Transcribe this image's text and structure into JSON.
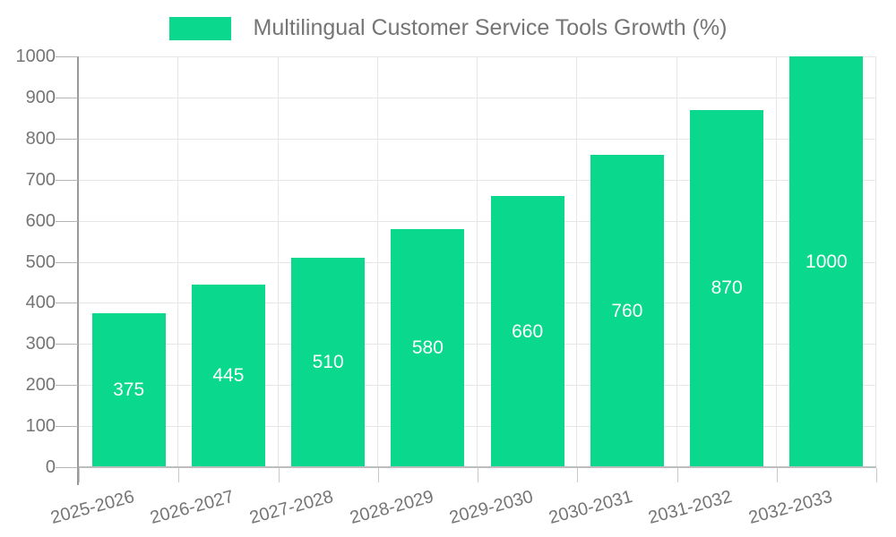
{
  "legend": {
    "label": "Multilingual Customer Service Tools Growth (%)"
  },
  "colors": {
    "bar": "#0ad88c",
    "value_label": "#ffffff",
    "axis_text": "#757575",
    "gridline": "#e6e6e6",
    "y_axis_line": "#9a9a9a",
    "x_axis_line": "#bdbdbd"
  },
  "chart_data": {
    "type": "bar",
    "title": "Multilingual Customer Service Tools Growth (%)",
    "categories": [
      "2025-2026",
      "2026-2027",
      "2027-2028",
      "2028-2029",
      "2029-2030",
      "2030-2031",
      "2031-2032",
      "2032-2033"
    ],
    "values": [
      375,
      445,
      510,
      580,
      660,
      760,
      870,
      1000
    ],
    "value_labels": [
      "375",
      "445",
      "510",
      "580",
      "660",
      "760",
      "870",
      "1000"
    ],
    "xlabel": "",
    "ylabel": "",
    "ylim": [
      0,
      1000
    ],
    "ytick_step": 100,
    "yticks": [
      0,
      100,
      200,
      300,
      400,
      500,
      600,
      700,
      800,
      900,
      1000
    ],
    "grid": true,
    "legend_position": "top-center",
    "x_label_rotation_deg": -15
  }
}
